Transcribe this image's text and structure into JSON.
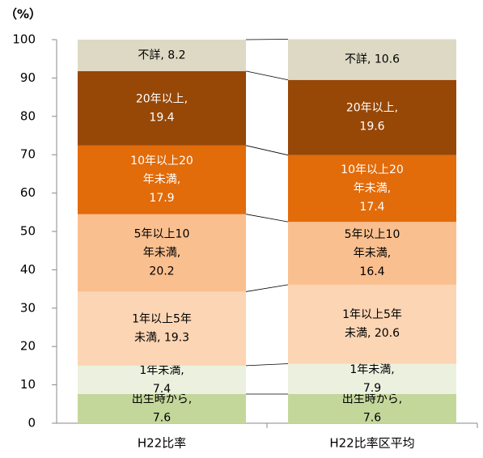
{
  "chart_data": {
    "type": "stacked_bar",
    "y_label": "（%）",
    "categories": [
      "H22比率",
      "H22比率区平均"
    ],
    "ylim": [
      0,
      100
    ],
    "yticks": [
      0,
      10,
      20,
      30,
      40,
      50,
      60,
      70,
      80,
      90,
      100
    ],
    "series": [
      {
        "color": "#c4d79b",
        "label_color": "#000000",
        "values": [
          7.6,
          7.6
        ],
        "value_labels": [
          "出生時から,\n7.6",
          "出生時から,\n7.6"
        ]
      },
      {
        "color": "#ebf1de",
        "label_color": "#000000",
        "values": [
          7.4,
          7.9
        ],
        "value_labels": [
          "1年未満,\n7.4",
          "1年未満,\n7.9"
        ]
      },
      {
        "color": "#fcd5b4",
        "label_color": "#000000",
        "values": [
          19.3,
          20.6
        ],
        "value_labels": [
          "1年以上5年\n未満, 19.3",
          "1年以上5年\n未満, 20.6"
        ]
      },
      {
        "color": "#fabf8f",
        "label_color": "#000000",
        "values": [
          20.2,
          16.4
        ],
        "value_labels": [
          "5年以上10\n年未満,\n20.2",
          "5年以上10\n年未満,\n16.4"
        ]
      },
      {
        "color": "#e26b0a",
        "label_color": "#ffffff",
        "values": [
          17.9,
          17.4
        ],
        "value_labels": [
          "10年以上20\n年未満,\n17.9",
          "10年以上20\n年未満,\n17.4"
        ]
      },
      {
        "color": "#974706",
        "label_color": "#ffffff",
        "values": [
          19.4,
          19.6
        ],
        "value_labels": [
          "20年以上,\n19.4",
          "20年以上,\n19.6"
        ]
      },
      {
        "color": "#ddd9c4",
        "label_color": "#000000",
        "values": [
          8.2,
          10.6
        ],
        "value_labels": [
          "不詳, 8.2",
          "不詳, 10.6"
        ]
      }
    ]
  }
}
